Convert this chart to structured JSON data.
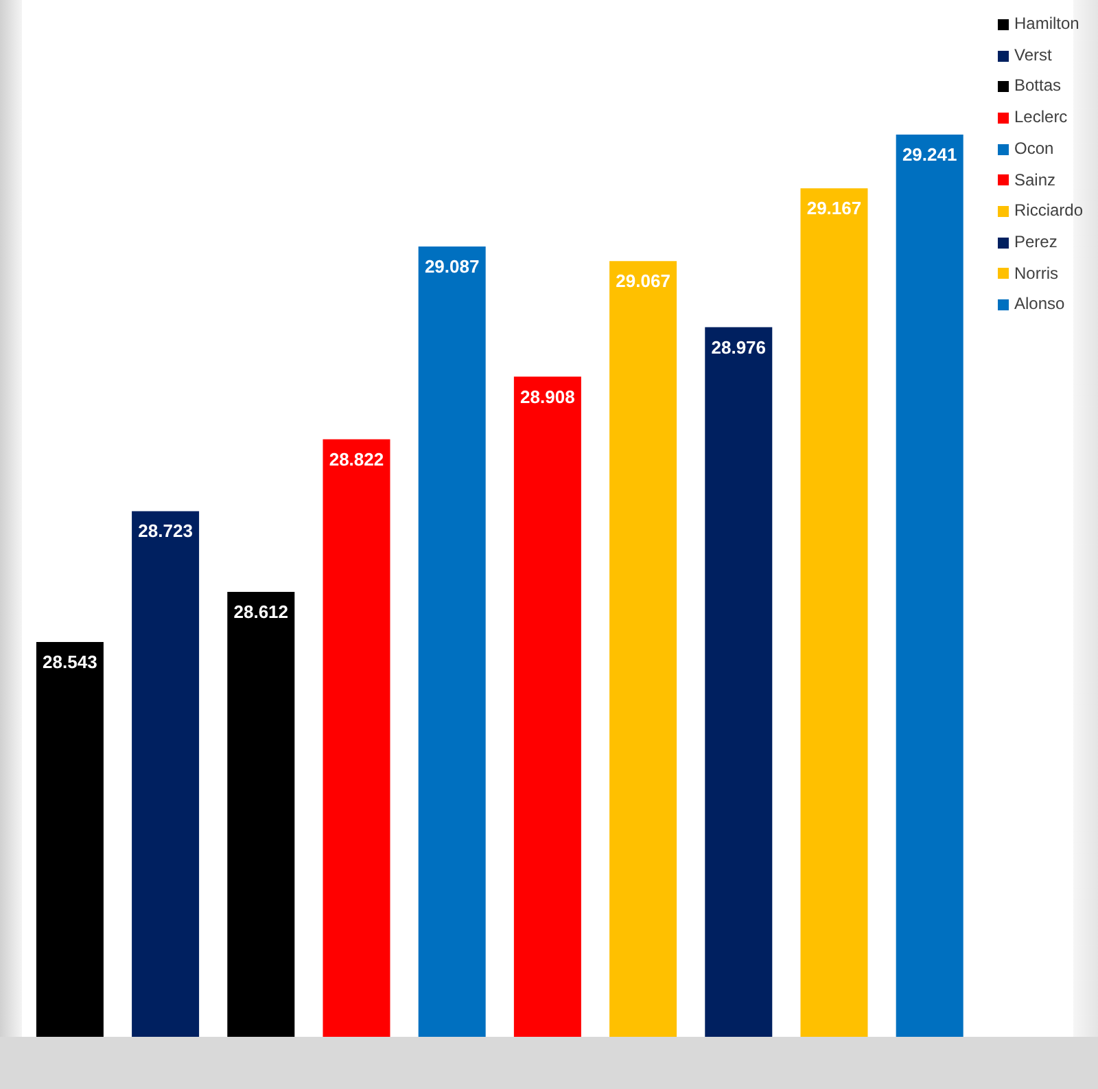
{
  "chart_data": {
    "type": "bar",
    "categories": [
      null,
      null,
      null,
      null,
      null,
      null,
      null,
      null,
      null,
      null
    ],
    "series": [
      {
        "name": "Hamilton",
        "color": "#000000",
        "values": [
          28.543,
          null,
          null,
          null,
          null,
          null,
          null,
          null,
          null,
          null
        ]
      },
      {
        "name": "Verst",
        "color": "#002060",
        "values": [
          null,
          28.723,
          null,
          null,
          null,
          null,
          null,
          null,
          null,
          null
        ]
      },
      {
        "name": "Bottas",
        "color": "#000000",
        "values": [
          null,
          null,
          28.612,
          null,
          null,
          null,
          null,
          null,
          null,
          null
        ]
      },
      {
        "name": "Leclerc",
        "color": "#ff0000",
        "values": [
          null,
          null,
          null,
          28.822,
          null,
          null,
          null,
          null,
          null,
          null
        ]
      },
      {
        "name": "Ocon",
        "color": "#0070c0",
        "values": [
          null,
          null,
          null,
          null,
          29.087,
          null,
          null,
          null,
          null,
          null
        ]
      },
      {
        "name": "Sainz",
        "color": "#ff0000",
        "values": [
          null,
          null,
          null,
          null,
          null,
          28.908,
          null,
          null,
          null,
          null
        ]
      },
      {
        "name": "Ricciardo",
        "color": "#ffc000",
        "values": [
          null,
          null,
          null,
          null,
          null,
          null,
          29.067,
          null,
          null,
          null
        ]
      },
      {
        "name": "Perez",
        "color": "#002060",
        "values": [
          null,
          null,
          null,
          null,
          null,
          null,
          null,
          28.976,
          null,
          null
        ]
      },
      {
        "name": "Norris",
        "color": "#ffc000",
        "values": [
          null,
          null,
          null,
          null,
          null,
          null,
          null,
          null,
          29.167,
          null
        ]
      },
      {
        "name": "Alonso",
        "color": "#0070c0",
        "values": [
          null,
          null,
          null,
          null,
          null,
          null,
          null,
          null,
          null,
          29.241
        ]
      }
    ],
    "stacked": true,
    "ylim": [
      28,
      29.241
    ],
    "data_labels": true,
    "legend": "top right",
    "tick_labels": false
  }
}
